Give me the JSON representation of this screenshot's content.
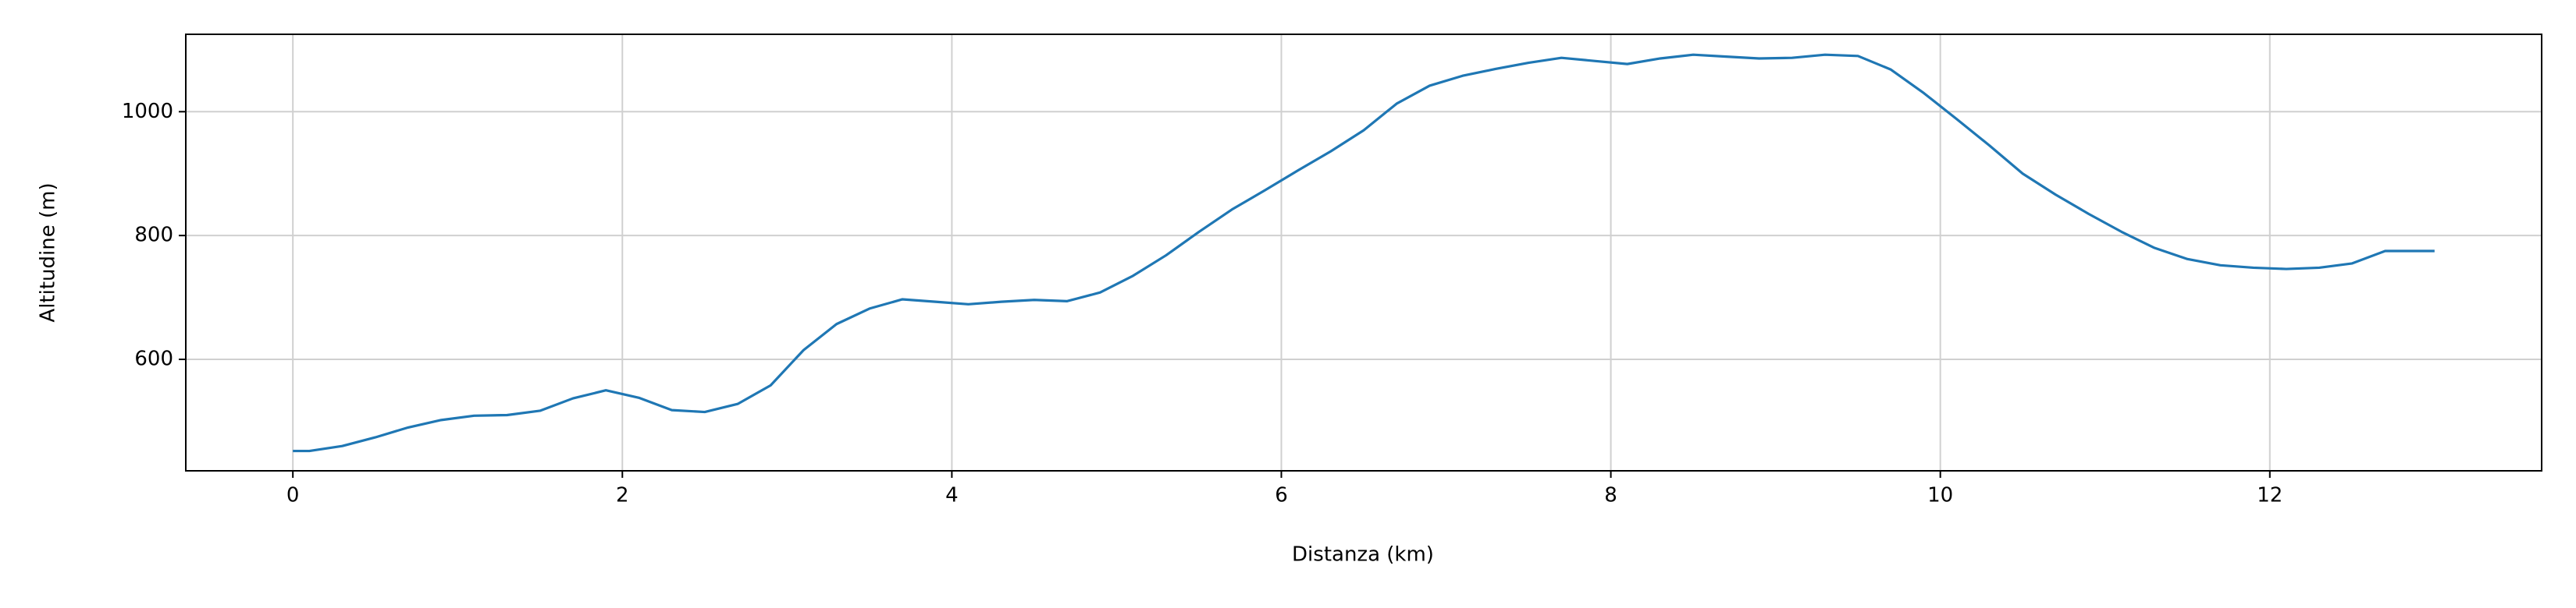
{
  "chart_data": {
    "type": "line",
    "x_label": "Distanza (km)",
    "y_label": "Altitudine (m)",
    "x": [
      0,
      0.1,
      0.3,
      0.5,
      0.7,
      0.9,
      1.1,
      1.3,
      1.5,
      1.7,
      1.9,
      2.1,
      2.3,
      2.5,
      2.7,
      2.9,
      3.1,
      3.3,
      3.5,
      3.7,
      3.9,
      4.1,
      4.3,
      4.5,
      4.7,
      4.9,
      5.1,
      5.3,
      5.5,
      5.7,
      5.9,
      6.1,
      6.3,
      6.5,
      6.7,
      6.9,
      7.1,
      7.3,
      7.5,
      7.7,
      7.9,
      8.1,
      8.3,
      8.5,
      8.7,
      8.9,
      9.1,
      9.3,
      9.5,
      9.7,
      9.9,
      10.1,
      10.3,
      10.5,
      10.7,
      10.9,
      11.1,
      11.3,
      11.5,
      11.7,
      11.9,
      12.1,
      12.3,
      12.5,
      12.7,
      12.9,
      13.0
    ],
    "series": [
      {
        "color": "#1f77b4",
        "values": [
          452,
          452,
          460,
          474,
          490,
          502,
          509,
          510,
          517,
          537,
          550,
          538,
          518,
          515,
          528,
          558,
          615,
          657,
          682,
          697,
          693,
          689,
          693,
          696,
          694,
          708,
          735,
          768,
          806,
          842,
          873,
          905,
          936,
          970,
          1013,
          1042,
          1058,
          1069,
          1079,
          1087,
          1082,
          1077,
          1086,
          1092,
          1089,
          1086,
          1087,
          1092,
          1090,
          1068,
          1030,
          988,
          945,
          900,
          866,
          835,
          806,
          780,
          762,
          752,
          748,
          746,
          748,
          755,
          775,
          775,
          775
        ]
      }
    ],
    "xlim": [
      -0.65,
      13.65
    ],
    "ylim": [
      420,
      1125
    ],
    "xticks": [
      0,
      2,
      4,
      6,
      8,
      10,
      12
    ],
    "yticks": [
      600,
      800,
      1000
    ],
    "grid": true
  }
}
